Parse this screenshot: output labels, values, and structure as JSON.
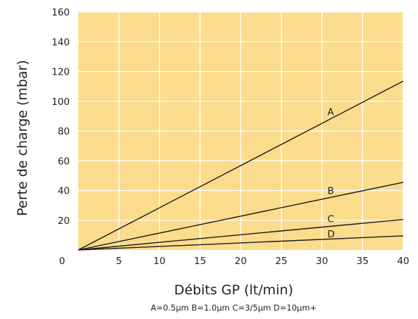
{
  "chart_data": {
    "type": "line",
    "xlabel": "Débits GP (lt/min)",
    "ylabel": "Perte de charge (mbar)",
    "note": "A=0.5µm B=1.0µm C=3/5µm D=10µm+",
    "origin_label": "0",
    "xlim": [
      0,
      40
    ],
    "ylim": [
      0,
      160
    ],
    "x_ticks": [
      5,
      10,
      15,
      20,
      25,
      30,
      35,
      40
    ],
    "x_tick_labels": [
      "5",
      "10",
      "15",
      "20",
      "25",
      "30",
      "35",
      "40"
    ],
    "y_ticks": [
      20,
      40,
      60,
      80,
      100,
      120,
      140,
      160
    ],
    "y_tick_labels": [
      "20",
      "40",
      "60",
      "80",
      "100",
      "120",
      "140",
      "160"
    ],
    "grid": true,
    "colors": {
      "plot_background": "#fbdc8d",
      "grid": "#ffffff",
      "line": "#1a1a1a"
    },
    "series": [
      {
        "name": "A",
        "x": [
          0,
          40
        ],
        "y": [
          0,
          113.5
        ],
        "label_at": [
          30.5,
          93
        ]
      },
      {
        "name": "B",
        "x": [
          0,
          40
        ],
        "y": [
          0,
          45.5
        ],
        "label_at": [
          30.5,
          40
        ]
      },
      {
        "name": "C",
        "x": [
          0,
          40
        ],
        "y": [
          0,
          20.5
        ],
        "label_at": [
          30.5,
          21
        ]
      },
      {
        "name": "D",
        "x": [
          0,
          40
        ],
        "y": [
          0,
          9.5
        ],
        "label_at": [
          30.5,
          11
        ]
      }
    ]
  }
}
